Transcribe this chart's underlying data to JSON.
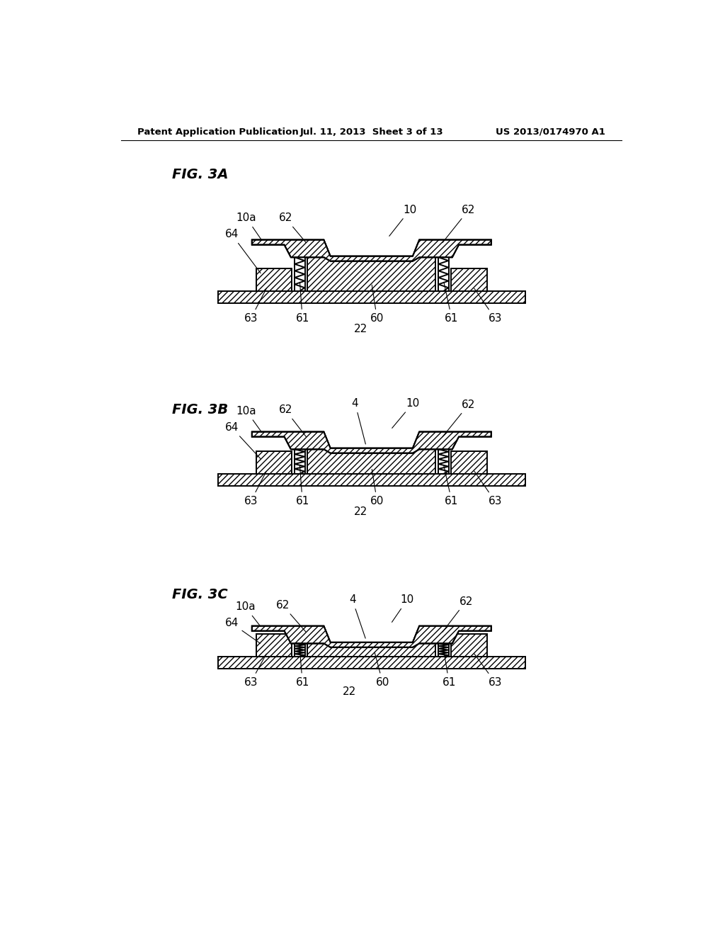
{
  "header_left": "Patent Application Publication",
  "header_mid": "Jul. 11, 2013  Sheet 3 of 13",
  "header_right": "US 2013/0174970 A1",
  "bg_color": "#ffffff"
}
